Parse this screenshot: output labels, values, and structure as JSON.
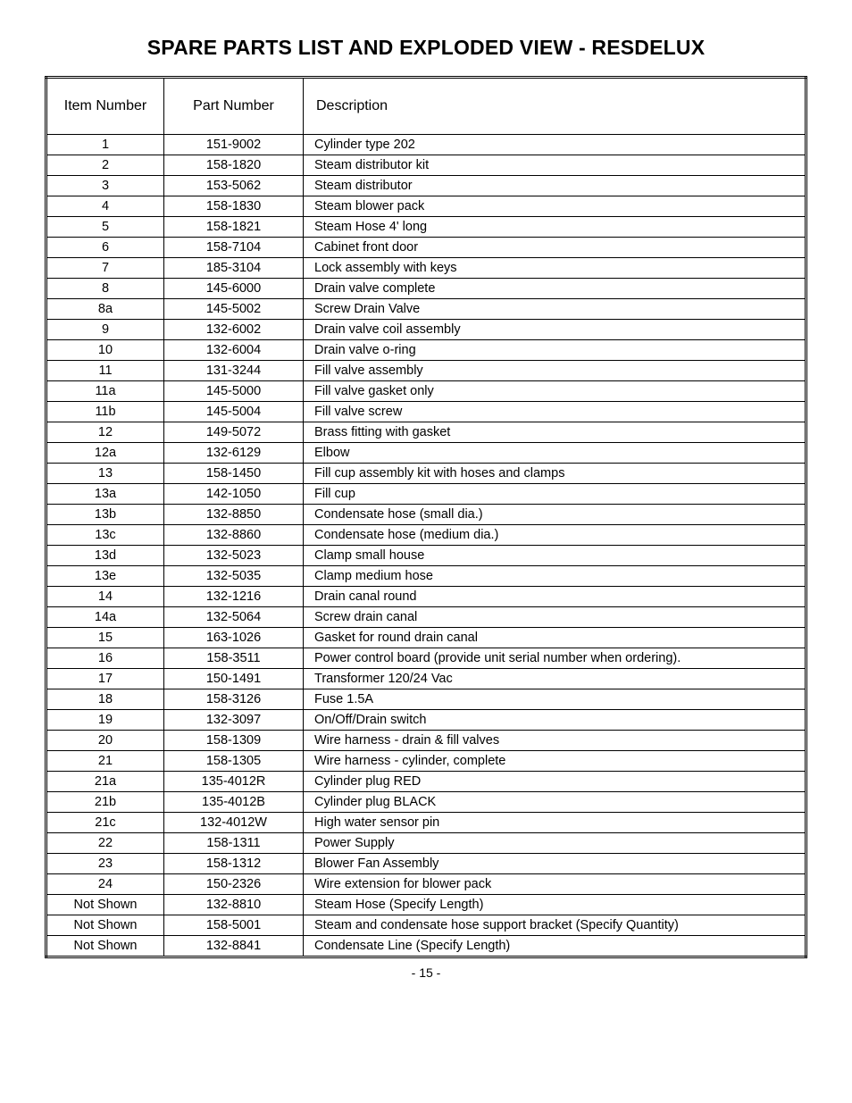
{
  "title": "SPARE PARTS LIST AND EXPLODED VIEW - RESDELUX",
  "columns": [
    "Item Number",
    "Part Number",
    "Description"
  ],
  "rows": [
    [
      "1",
      "151-9002",
      "Cylinder type 202"
    ],
    [
      "2",
      "158-1820",
      "Steam distributor kit"
    ],
    [
      "3",
      "153-5062",
      "Steam distributor"
    ],
    [
      "4",
      "158-1830",
      "Steam blower pack"
    ],
    [
      "5",
      "158-1821",
      "Steam Hose 4' long"
    ],
    [
      "6",
      "158-7104",
      "Cabinet front door"
    ],
    [
      "7",
      "185-3104",
      "Lock assembly with keys"
    ],
    [
      "8",
      "145-6000",
      "Drain valve complete"
    ],
    [
      "8a",
      "145-5002",
      "Screw Drain Valve"
    ],
    [
      "9",
      "132-6002",
      "Drain valve coil assembly"
    ],
    [
      "10",
      "132-6004",
      "Drain valve o-ring"
    ],
    [
      "11",
      "131-3244",
      "Fill valve assembly"
    ],
    [
      "11a",
      "145-5000",
      "Fill valve gasket only"
    ],
    [
      "11b",
      "145-5004",
      "Fill valve screw"
    ],
    [
      "12",
      "149-5072",
      "Brass fitting with gasket"
    ],
    [
      "12a",
      "132-6129",
      "Elbow"
    ],
    [
      "13",
      "158-1450",
      "Fill cup assembly kit with hoses and clamps"
    ],
    [
      "13a",
      "142-1050",
      "Fill cup"
    ],
    [
      "13b",
      "132-8850",
      "Condensate hose (small dia.)"
    ],
    [
      "13c",
      "132-8860",
      "Condensate hose (medium dia.)"
    ],
    [
      "13d",
      "132-5023",
      "Clamp small house"
    ],
    [
      "13e",
      "132-5035",
      "Clamp medium hose"
    ],
    [
      "14",
      "132-1216",
      "Drain canal round"
    ],
    [
      "14a",
      "132-5064",
      "Screw drain canal"
    ],
    [
      "15",
      "163-1026",
      "Gasket for round drain canal"
    ],
    [
      "16",
      "158-3511",
      "Power control board (provide unit serial number when ordering)."
    ],
    [
      "17",
      "150-1491",
      "Transformer 120/24 Vac"
    ],
    [
      "18",
      "158-3126",
      "Fuse 1.5A"
    ],
    [
      "19",
      "132-3097",
      "On/Off/Drain switch"
    ],
    [
      "20",
      "158-1309",
      "Wire harness - drain & fill valves"
    ],
    [
      "21",
      "158-1305",
      "Wire harness - cylinder, complete"
    ],
    [
      "21a",
      "135-4012R",
      "Cylinder plug RED"
    ],
    [
      "21b",
      "135-4012B",
      "Cylinder plug BLACK"
    ],
    [
      "21c",
      "132-4012W",
      "High water sensor pin"
    ],
    [
      "22",
      "158-1311",
      "Power Supply"
    ],
    [
      "23",
      "158-1312",
      "Blower Fan Assembly"
    ],
    [
      "24",
      "150-2326",
      "Wire extension for blower pack"
    ],
    [
      "Not Shown",
      "132-8810",
      "Steam Hose (Specify Length)"
    ],
    [
      "Not Shown",
      "158-5001",
      "Steam and condensate hose support bracket (Specify Quantity)"
    ],
    [
      "Not Shown",
      "132-8841",
      "Condensate Line (Specify Length)"
    ]
  ],
  "page_number": "- 15 -"
}
